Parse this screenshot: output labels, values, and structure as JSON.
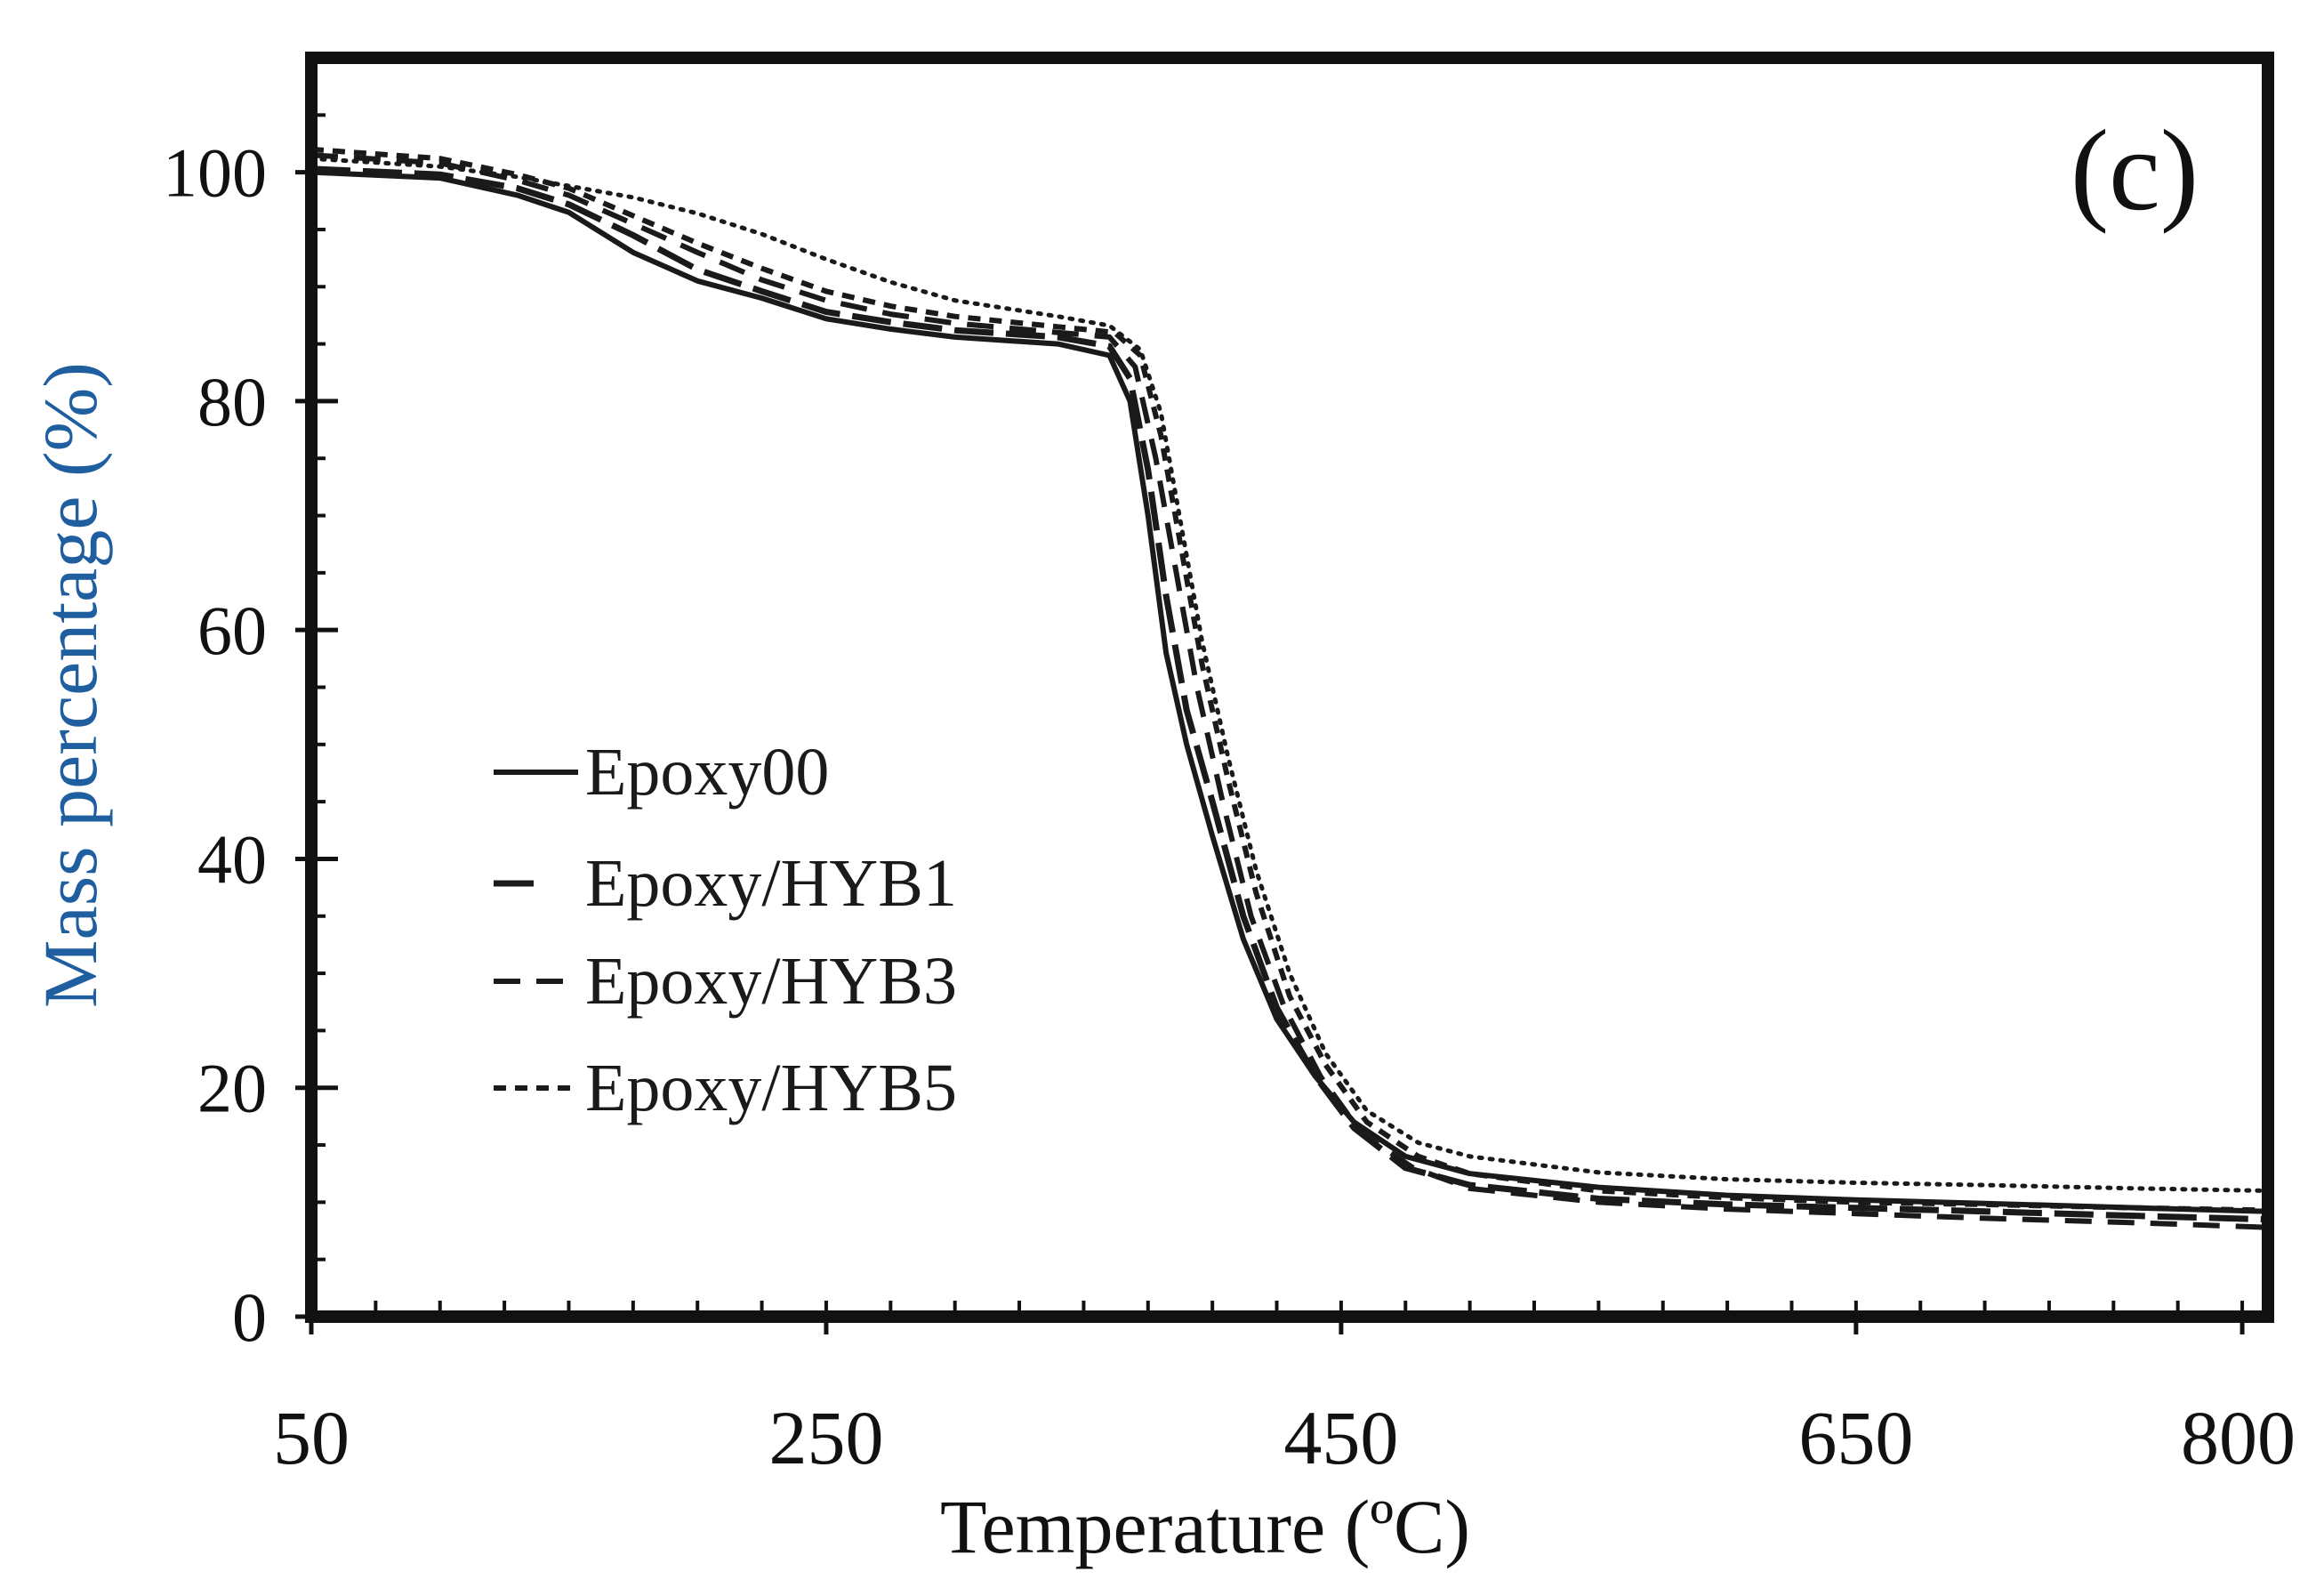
{
  "chart_data": {
    "type": "line",
    "panel_label": "(c)",
    "title": "",
    "xlabel": "Temperature (ºC)",
    "ylabel": "Mass percentage  (%)",
    "xlim": [
      50,
      810
    ],
    "ylim": [
      0,
      110
    ],
    "x_ticks": [
      50,
      250,
      450,
      650,
      800
    ],
    "y_ticks": [
      0,
      20,
      40,
      60,
      80,
      100
    ],
    "legend_position": "middle-left",
    "colors": {
      "axis": "#111111",
      "ylabel": "#1f5fa0",
      "line": "#1a1a1a"
    },
    "series": [
      {
        "name": "Epoxy00",
        "style": "solid",
        "points": [
          [
            50,
            100
          ],
          [
            100,
            99.5
          ],
          [
            130,
            98
          ],
          [
            150,
            96.5
          ],
          [
            175,
            93
          ],
          [
            200,
            90.5
          ],
          [
            225,
            89
          ],
          [
            250,
            87.2
          ],
          [
            275,
            86.3
          ],
          [
            300,
            85.6
          ],
          [
            340,
            85
          ],
          [
            360,
            84
          ],
          [
            368,
            80
          ],
          [
            375,
            70
          ],
          [
            382,
            58
          ],
          [
            390,
            50
          ],
          [
            400,
            42
          ],
          [
            412,
            33
          ],
          [
            425,
            26
          ],
          [
            440,
            21
          ],
          [
            455,
            17
          ],
          [
            475,
            14
          ],
          [
            500,
            12.5
          ],
          [
            550,
            11.3
          ],
          [
            600,
            10.6
          ],
          [
            650,
            10.2
          ],
          [
            700,
            9.9
          ],
          [
            760,
            9.5
          ],
          [
            810,
            9.2
          ]
        ]
      },
      {
        "name": "Epoxy/HYB1",
        "style": "longdash",
        "points": [
          [
            50,
            100.3
          ],
          [
            100,
            99.8
          ],
          [
            130,
            98.6
          ],
          [
            150,
            97.2
          ],
          [
            175,
            94.5
          ],
          [
            200,
            91.5
          ],
          [
            225,
            89.6
          ],
          [
            250,
            87.8
          ],
          [
            275,
            86.9
          ],
          [
            300,
            86.2
          ],
          [
            340,
            85.6
          ],
          [
            360,
            84.8
          ],
          [
            368,
            82
          ],
          [
            375,
            74
          ],
          [
            382,
            63
          ],
          [
            390,
            53
          ],
          [
            400,
            45
          ],
          [
            412,
            35
          ],
          [
            425,
            27
          ],
          [
            440,
            21
          ],
          [
            455,
            16.5
          ],
          [
            475,
            13
          ],
          [
            500,
            11.5
          ],
          [
            550,
            10.3
          ],
          [
            600,
            9.8
          ],
          [
            650,
            9.5
          ],
          [
            700,
            9.2
          ],
          [
            760,
            8.8
          ],
          [
            810,
            8.5
          ]
        ]
      },
      {
        "name": "Epoxy/HYB3",
        "style": "dash",
        "points": [
          [
            50,
            101.5
          ],
          [
            100,
            100.8
          ],
          [
            130,
            99.3
          ],
          [
            150,
            98
          ],
          [
            175,
            95.5
          ],
          [
            200,
            93
          ],
          [
            225,
            90.6
          ],
          [
            250,
            88.8
          ],
          [
            275,
            87.6
          ],
          [
            300,
            86.8
          ],
          [
            340,
            86
          ],
          [
            360,
            85.6
          ],
          [
            370,
            83
          ],
          [
            378,
            75
          ],
          [
            386,
            65
          ],
          [
            394,
            55
          ],
          [
            404,
            45
          ],
          [
            415,
            35
          ],
          [
            428,
            27
          ],
          [
            442,
            21
          ],
          [
            458,
            16
          ],
          [
            478,
            13
          ],
          [
            500,
            11.2
          ],
          [
            550,
            10
          ],
          [
            600,
            9.4
          ],
          [
            650,
            9
          ],
          [
            700,
            8.6
          ],
          [
            760,
            8.2
          ],
          [
            810,
            7.8
          ]
        ]
      },
      {
        "name": "Epoxy/HYB5",
        "style": "shortdash",
        "points": [
          [
            50,
            102
          ],
          [
            100,
            101.2
          ],
          [
            130,
            99.8
          ],
          [
            150,
            98.6
          ],
          [
            175,
            96.2
          ],
          [
            200,
            93.8
          ],
          [
            225,
            91.6
          ],
          [
            250,
            89.6
          ],
          [
            275,
            88.3
          ],
          [
            300,
            87.4
          ],
          [
            340,
            86.5
          ],
          [
            362,
            86
          ],
          [
            372,
            84
          ],
          [
            380,
            77
          ],
          [
            388,
            67
          ],
          [
            396,
            57
          ],
          [
            406,
            47
          ],
          [
            417,
            37
          ],
          [
            430,
            28
          ],
          [
            444,
            22
          ],
          [
            460,
            17
          ],
          [
            480,
            14
          ],
          [
            500,
            12.5
          ],
          [
            550,
            11
          ],
          [
            600,
            10.4
          ],
          [
            650,
            10
          ],
          [
            700,
            9.8
          ],
          [
            760,
            9.5
          ],
          [
            810,
            9.3
          ]
        ]
      },
      {
        "name": "",
        "style": "dotted",
        "points": [
          [
            50,
            101.2
          ],
          [
            100,
            100.5
          ],
          [
            130,
            99.6
          ],
          [
            150,
            98.8
          ],
          [
            175,
            97.8
          ],
          [
            200,
            96.4
          ],
          [
            225,
            94.6
          ],
          [
            250,
            92.4
          ],
          [
            275,
            90.4
          ],
          [
            300,
            88.8
          ],
          [
            340,
            87.4
          ],
          [
            360,
            86.6
          ],
          [
            372,
            84.5
          ],
          [
            380,
            79
          ],
          [
            388,
            69
          ],
          [
            396,
            59
          ],
          [
            406,
            49
          ],
          [
            417,
            39
          ],
          [
            430,
            30
          ],
          [
            444,
            23
          ],
          [
            460,
            18
          ],
          [
            480,
            15.2
          ],
          [
            500,
            14
          ],
          [
            550,
            12.6
          ],
          [
            600,
            12
          ],
          [
            650,
            11.7
          ],
          [
            700,
            11.5
          ],
          [
            760,
            11.2
          ],
          [
            810,
            11
          ]
        ]
      }
    ]
  }
}
